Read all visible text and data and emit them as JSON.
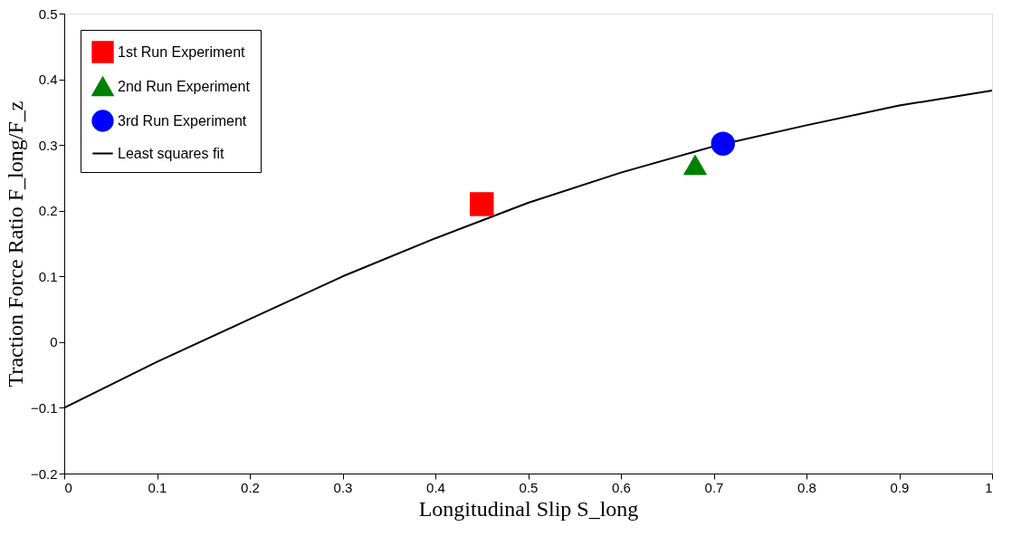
{
  "chart_data": {
    "type": "scatter",
    "xlabel": "Longitudinal Slip S_long",
    "ylabel": "Traction Force Ratio F_long/F_z",
    "series": [
      {
        "name": "1st Run Experiment",
        "color": "#ff0000",
        "marker": "square",
        "x": [
          0.45
        ],
        "values": [
          0.21
        ]
      },
      {
        "name": "2nd Run Experiment",
        "color": "#008000",
        "marker": "triangle",
        "x": [
          0.68
        ],
        "values": [
          0.27
        ]
      },
      {
        "name": "3rd Run Experiment",
        "color": "#0000ff",
        "marker": "circle",
        "x": [
          0.71
        ],
        "values": [
          0.302
        ]
      },
      {
        "name": "Least squares fit",
        "color": "#000000",
        "type": "line",
        "marker": "none",
        "x": [
          0,
          0.1,
          0.2,
          0.3,
          0.4,
          0.5,
          0.6,
          0.7,
          0.8,
          0.9,
          1.0
        ],
        "values": [
          -0.1,
          -0.03,
          0.035,
          0.1,
          0.158,
          0.212,
          0.258,
          0.298,
          0.33,
          0.36,
          0.383
        ]
      }
    ],
    "xlim": [
      0,
      1
    ],
    "xticks": [
      0,
      0.1,
      0.2,
      0.3,
      0.4,
      0.5,
      0.6,
      0.7,
      0.8,
      0.9,
      1
    ],
    "ylim": [
      -0.2,
      0.5
    ],
    "yticks": [
      {
        "value": -0.2,
        "label": "−0.2"
      },
      {
        "value": -0.1,
        "label": "−0.1"
      },
      0,
      0.1,
      0.2,
      0.3,
      0.4,
      0.5
    ],
    "grid": false,
    "legend": "top left"
  }
}
